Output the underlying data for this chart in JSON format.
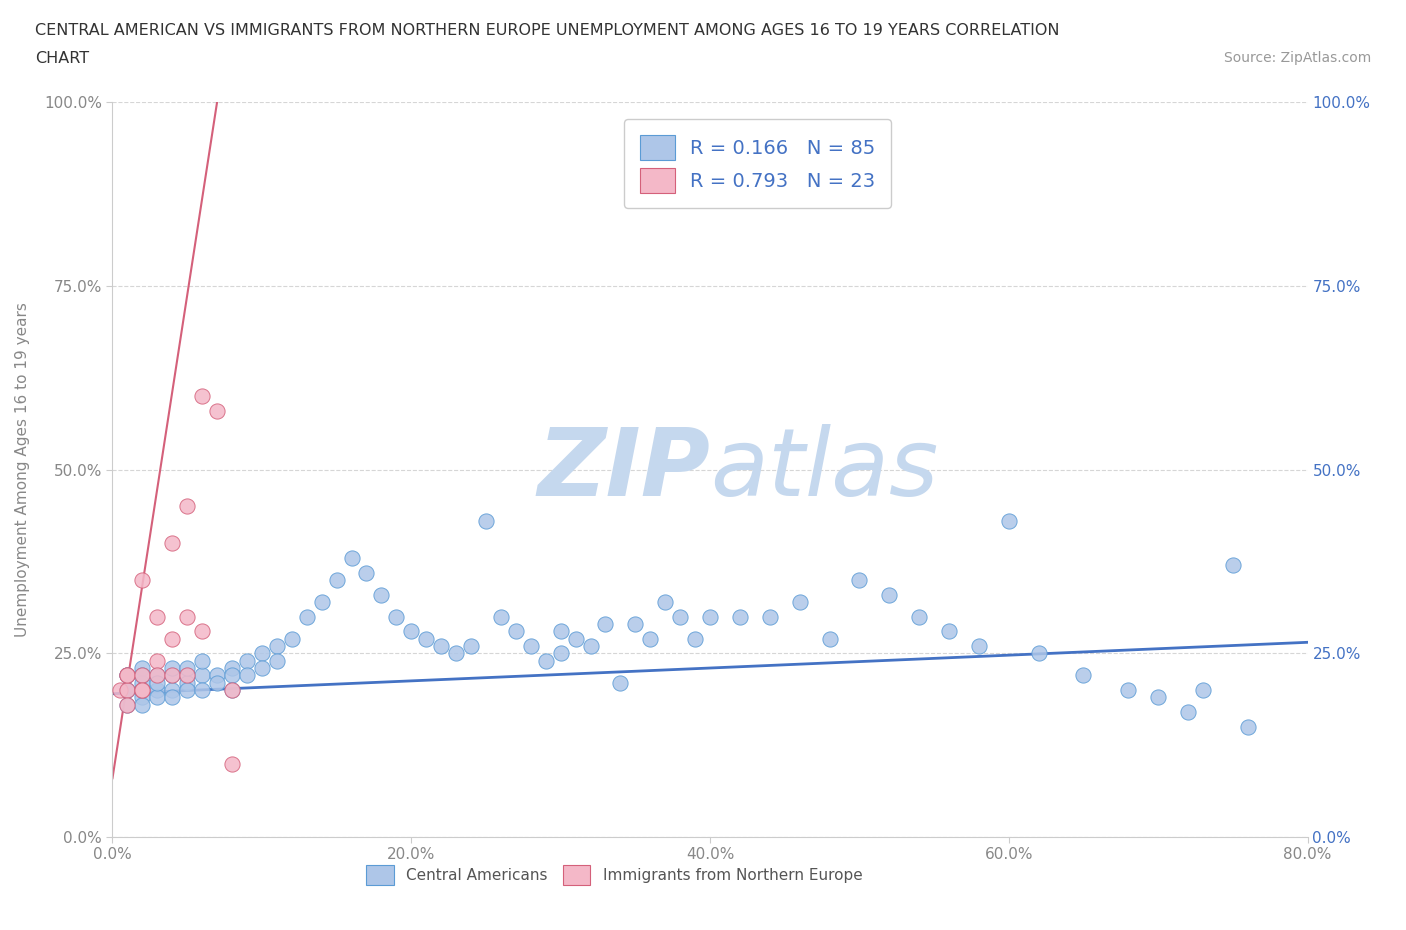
{
  "title_line1": "CENTRAL AMERICAN VS IMMIGRANTS FROM NORTHERN EUROPE UNEMPLOYMENT AMONG AGES 16 TO 19 YEARS CORRELATION",
  "title_line2": "CHART",
  "source_text": "Source: ZipAtlas.com",
  "ylabel": "Unemployment Among Ages 16 to 19 years",
  "xlim": [
    0.0,
    0.8
  ],
  "ylim": [
    0.0,
    1.0
  ],
  "xticks": [
    0.0,
    0.2,
    0.4,
    0.6,
    0.8
  ],
  "yticks": [
    0.0,
    0.25,
    0.5,
    0.75,
    1.0
  ],
  "xticklabels": [
    "0.0%",
    "20.0%",
    "40.0%",
    "60.0%",
    "80.0%"
  ],
  "yticklabels": [
    "0.0%",
    "25.0%",
    "50.0%",
    "75.0%",
    "100.0%"
  ],
  "right_yticklabels": [
    "0.0%",
    "25.0%",
    "50.0%",
    "75.0%",
    "100.0%"
  ],
  "blue_color": "#aec6e8",
  "blue_edge": "#5b9bd5",
  "pink_color": "#f4b8c8",
  "pink_edge": "#d4607a",
  "legend_text_color": "#4472c4",
  "blue_R": 0.166,
  "blue_N": 85,
  "pink_R": 0.793,
  "pink_N": 23,
  "blue_line_color": "#4472c4",
  "pink_line_color": "#d4607a",
  "watermark_zip": "ZIP",
  "watermark_atlas": "atlas",
  "watermark_color_zip": "#c5d8ee",
  "watermark_color_atlas": "#c5d8ee",
  "background_color": "#ffffff",
  "grid_color": "#cccccc",
  "tick_color": "#888888",
  "blue_x": [
    0.01,
    0.01,
    0.01,
    0.01,
    0.01,
    0.02,
    0.02,
    0.02,
    0.02,
    0.02,
    0.02,
    0.03,
    0.03,
    0.03,
    0.03,
    0.04,
    0.04,
    0.04,
    0.04,
    0.05,
    0.05,
    0.05,
    0.05,
    0.06,
    0.06,
    0.06,
    0.07,
    0.07,
    0.08,
    0.08,
    0.08,
    0.09,
    0.09,
    0.1,
    0.1,
    0.11,
    0.11,
    0.12,
    0.13,
    0.14,
    0.15,
    0.16,
    0.17,
    0.18,
    0.19,
    0.2,
    0.21,
    0.22,
    0.23,
    0.24,
    0.25,
    0.26,
    0.27,
    0.28,
    0.29,
    0.3,
    0.3,
    0.31,
    0.32,
    0.33,
    0.34,
    0.35,
    0.36,
    0.37,
    0.38,
    0.39,
    0.4,
    0.42,
    0.44,
    0.46,
    0.48,
    0.5,
    0.52,
    0.54,
    0.56,
    0.58,
    0.6,
    0.62,
    0.65,
    0.68,
    0.7,
    0.72,
    0.73,
    0.75,
    0.76
  ],
  "blue_y": [
    0.2,
    0.22,
    0.18,
    0.2,
    0.22,
    0.21,
    0.19,
    0.23,
    0.2,
    0.22,
    0.18,
    0.22,
    0.2,
    0.19,
    0.21,
    0.22,
    0.2,
    0.23,
    0.19,
    0.22,
    0.21,
    0.2,
    0.23,
    0.22,
    0.2,
    0.24,
    0.22,
    0.21,
    0.23,
    0.22,
    0.2,
    0.24,
    0.22,
    0.25,
    0.23,
    0.26,
    0.24,
    0.27,
    0.3,
    0.32,
    0.35,
    0.38,
    0.36,
    0.33,
    0.3,
    0.28,
    0.27,
    0.26,
    0.25,
    0.26,
    0.43,
    0.3,
    0.28,
    0.26,
    0.24,
    0.28,
    0.25,
    0.27,
    0.26,
    0.29,
    0.21,
    0.29,
    0.27,
    0.32,
    0.3,
    0.27,
    0.3,
    0.3,
    0.3,
    0.32,
    0.27,
    0.35,
    0.33,
    0.3,
    0.28,
    0.26,
    0.43,
    0.25,
    0.22,
    0.2,
    0.19,
    0.17,
    0.2,
    0.37,
    0.15
  ],
  "pink_x": [
    0.005,
    0.01,
    0.01,
    0.01,
    0.01,
    0.02,
    0.02,
    0.02,
    0.02,
    0.03,
    0.03,
    0.03,
    0.04,
    0.04,
    0.04,
    0.05,
    0.05,
    0.05,
    0.06,
    0.06,
    0.07,
    0.08,
    0.08
  ],
  "pink_y": [
    0.2,
    0.22,
    0.2,
    0.18,
    0.22,
    0.2,
    0.22,
    0.35,
    0.2,
    0.24,
    0.3,
    0.22,
    0.27,
    0.4,
    0.22,
    0.45,
    0.3,
    0.22,
    0.6,
    0.28,
    0.58,
    0.2,
    0.1
  ],
  "pink_line_x0": 0.0,
  "pink_line_y0": 0.08,
  "pink_line_x1": 0.07,
  "pink_line_y1": 1.0,
  "blue_line_x0": 0.0,
  "blue_line_y0": 0.195,
  "blue_line_x1": 0.8,
  "blue_line_y1": 0.265
}
